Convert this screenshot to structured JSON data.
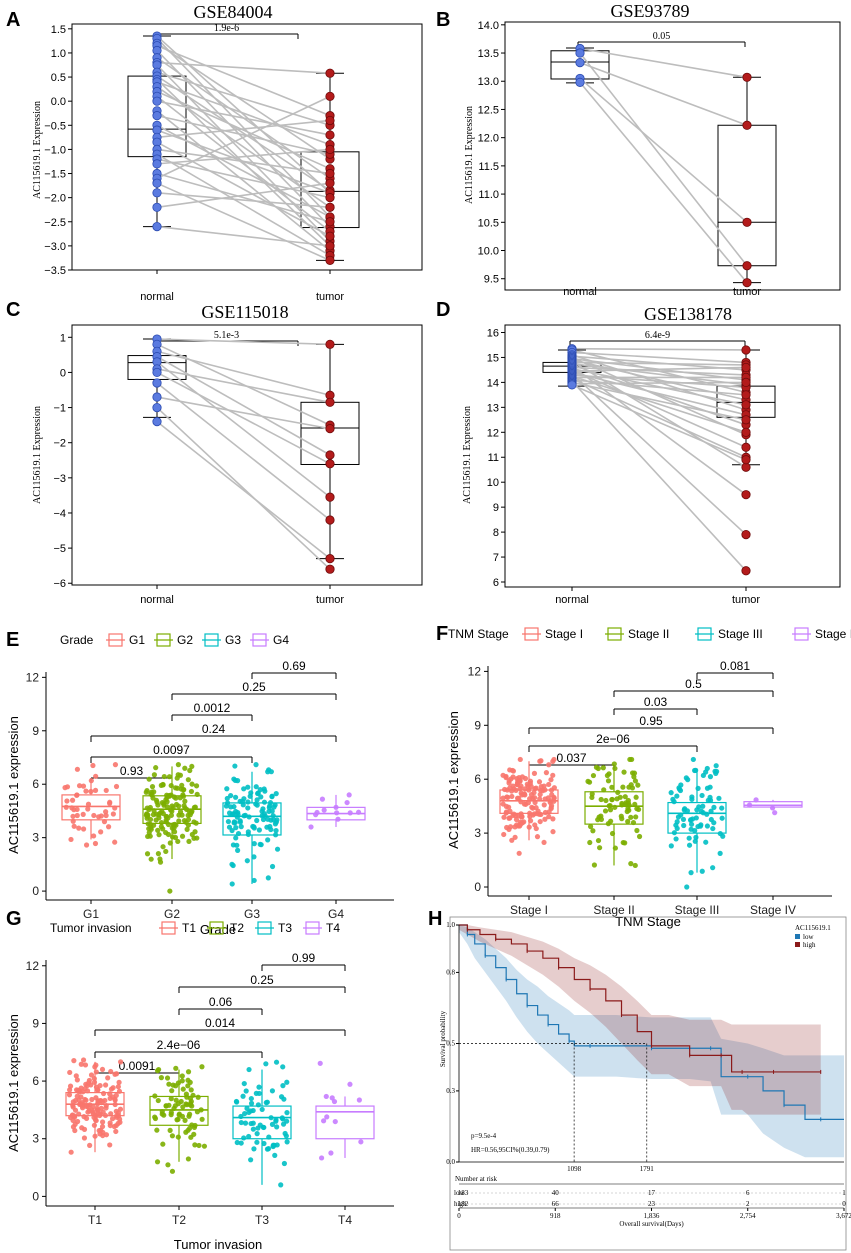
{
  "panel_labels": [
    "A",
    "B",
    "C",
    "D",
    "E",
    "F",
    "G",
    "H"
  ],
  "chart_data": [
    {
      "id": "A",
      "type": "paired-box",
      "title": "GSE84004",
      "ylabel": "AC115619.1 Expression",
      "categories": [
        "normal",
        "tumor"
      ],
      "ylim": [
        -3.5,
        1.6
      ],
      "yticks": [
        1.5,
        1.0,
        0.5,
        0.0,
        -0.5,
        -1.0,
        -1.5,
        -2.0,
        -2.5,
        -3.0,
        -3.5
      ],
      "yticklabels": [
        "1.5",
        "1.0",
        "0.5",
        "0.0",
        "−0.5",
        "−1.0",
        "−1.5",
        "−2.0",
        "−2.5",
        "−3.0",
        "−3.5"
      ],
      "pvalue": "1.9e-6",
      "box": [
        {
          "min": -2.6,
          "q1": -1.15,
          "median": -0.58,
          "q3": 0.52,
          "max": 1.35
        },
        {
          "min": -3.3,
          "q1": -2.62,
          "median": -1.87,
          "q3": -1.05,
          "max": 0.58
        }
      ],
      "pairs": [
        [
          1.35,
          -1.9
        ],
        [
          1.3,
          -2.4
        ],
        [
          1.2,
          -1.2
        ],
        [
          1.15,
          -0.3
        ],
        [
          1.05,
          -2.6
        ],
        [
          0.9,
          -1.6
        ],
        [
          0.8,
          0.58
        ],
        [
          0.75,
          -2.9
        ],
        [
          0.6,
          -0.5
        ],
        [
          0.52,
          -1.85
        ],
        [
          0.45,
          -3.0
        ],
        [
          0.4,
          -0.9
        ],
        [
          0.3,
          -2.2
        ],
        [
          0.2,
          -1.4
        ],
        [
          0.1,
          -2.7
        ],
        [
          0.0,
          -0.7
        ],
        [
          -0.2,
          -3.1
        ],
        [
          -0.3,
          -1.1
        ],
        [
          -0.5,
          -2.4
        ],
        [
          -0.6,
          -1.9
        ],
        [
          -0.75,
          -0.4
        ],
        [
          -0.85,
          -2.8
        ],
        [
          -1.0,
          -1.5
        ],
        [
          -1.1,
          -3.2
        ],
        [
          -1.2,
          -2.0
        ],
        [
          -1.3,
          -1.0
        ],
        [
          -1.5,
          -2.5
        ],
        [
          -1.6,
          0.1
        ],
        [
          -1.7,
          -3.3
        ],
        [
          -1.9,
          -2.2
        ],
        [
          -2.2,
          -1.7
        ],
        [
          -2.6,
          -3.0
        ]
      ]
    },
    {
      "id": "B",
      "type": "paired-box",
      "title": "GSE93789",
      "ylabel": "AC115619.1 Expression",
      "categories": [
        "normal",
        "tumor"
      ],
      "ylim": [
        9.3,
        14.05
      ],
      "yticks": [
        14.0,
        13.5,
        13.0,
        12.5,
        12.0,
        11.5,
        11.0,
        10.5,
        10.0,
        9.5
      ],
      "yticklabels": [
        "14.0",
        "13.5",
        "13.0",
        "12.5",
        "12.0",
        "11.5",
        "11.0",
        "10.5",
        "10.0",
        "9.5"
      ],
      "pvalue": "0.05",
      "box": [
        {
          "min": 12.97,
          "q1": 13.04,
          "median": 13.34,
          "q3": 13.54,
          "max": 13.59
        },
        {
          "min": 9.43,
          "q1": 9.73,
          "median": 10.5,
          "q3": 12.22,
          "max": 13.07
        }
      ],
      "pairs": [
        [
          13.58,
          13.07
        ],
        [
          13.5,
          9.73
        ],
        [
          13.33,
          12.22
        ],
        [
          13.05,
          10.5
        ],
        [
          12.98,
          9.43
        ]
      ]
    },
    {
      "id": "C",
      "type": "paired-box",
      "title": "GSE115018",
      "ylabel": "AC115619.1 Expression",
      "categories": [
        "normal",
        "tumor"
      ],
      "ylim": [
        -6.05,
        1.35
      ],
      "yticks": [
        1,
        0,
        -1,
        -2,
        -3,
        -4,
        -5,
        -6
      ],
      "yticklabels": [
        "1",
        "0",
        "−1",
        "−2",
        "−3",
        "−4",
        "−5",
        "−6"
      ],
      "pvalue": "5.1e-3",
      "box": [
        {
          "min": -1.28,
          "q1": -0.2,
          "median": 0.28,
          "q3": 0.48,
          "max": 0.95
        },
        {
          "min": -5.3,
          "q1": -2.62,
          "median": -1.58,
          "q3": -0.85,
          "max": 0.8
        }
      ],
      "pairs": [
        [
          0.95,
          0.8
        ],
        [
          0.8,
          -1.5
        ],
        [
          0.6,
          -0.65
        ],
        [
          0.45,
          -2.35
        ],
        [
          0.3,
          -3.55
        ],
        [
          0.1,
          -0.85
        ],
        [
          0.0,
          -2.6
        ],
        [
          -0.3,
          -4.2
        ],
        [
          -0.7,
          -1.6
        ],
        [
          -1.0,
          -5.6
        ],
        [
          -1.4,
          -5.3
        ]
      ]
    },
    {
      "id": "D",
      "type": "paired-box",
      "title": "GSE138178",
      "ylabel": "AC115619.1 Expression",
      "categories": [
        "normal",
        "tumor"
      ],
      "ylim": [
        5.8,
        16.3
      ],
      "yticks": [
        16,
        15,
        14,
        13,
        12,
        11,
        10,
        9,
        8,
        7,
        6
      ],
      "yticklabels": [
        "16",
        "15",
        "14",
        "13",
        "12",
        "11",
        "10",
        "9",
        "8",
        "7",
        "6"
      ],
      "pvalue": "6.4e-9",
      "box": [
        {
          "min": 13.85,
          "q1": 14.4,
          "median": 14.65,
          "q3": 14.8,
          "max": 15.3
        },
        {
          "min": 10.7,
          "q1": 12.6,
          "median": 13.2,
          "q3": 13.85,
          "max": 15.3
        }
      ],
      "pairs": [
        [
          15.35,
          15.3
        ],
        [
          15.3,
          13.6
        ],
        [
          15.2,
          14.8
        ],
        [
          15.1,
          12.9
        ],
        [
          15.05,
          14.5
        ],
        [
          15.0,
          11.9
        ],
        [
          14.95,
          14.1
        ],
        [
          14.9,
          13.3
        ],
        [
          14.85,
          10.6
        ],
        [
          14.8,
          14.7
        ],
        [
          14.75,
          13.9
        ],
        [
          14.7,
          12.3
        ],
        [
          14.65,
          9.5
        ],
        [
          14.6,
          14.3
        ],
        [
          14.55,
          13.1
        ],
        [
          14.5,
          11.4
        ],
        [
          14.45,
          14.6
        ],
        [
          14.4,
          12.7
        ],
        [
          14.35,
          7.9
        ],
        [
          14.3,
          13.8
        ],
        [
          14.25,
          12.0
        ],
        [
          14.2,
          14.2
        ],
        [
          14.15,
          11.0
        ],
        [
          14.1,
          13.5
        ],
        [
          14.05,
          6.45
        ],
        [
          14.0,
          12.5
        ],
        [
          13.95,
          14.0
        ],
        [
          13.9,
          10.9
        ]
      ]
    },
    {
      "id": "E",
      "type": "box-jitter",
      "legend_title": "Grade",
      "categories": [
        "G1",
        "G2",
        "G3",
        "G4"
      ],
      "colors": [
        "#f8766d",
        "#7cae00",
        "#00bfc4",
        "#c77cff"
      ],
      "xlabel": "Grade",
      "ylabel": "AC115619.1 expression",
      "ylim": [
        -0.5,
        12.3
      ],
      "yticks": [
        0,
        3,
        6,
        9,
        12
      ],
      "box": [
        {
          "min": 2.9,
          "q1": 4.0,
          "median": 4.75,
          "q3": 5.4,
          "max": 6.2
        },
        {
          "min": 1.8,
          "q1": 3.8,
          "median": 4.6,
          "q3": 5.35,
          "max": 7.0
        },
        {
          "min": 0.4,
          "q1": 3.15,
          "median": 4.2,
          "q3": 4.95,
          "max": 6.7
        },
        {
          "min": 3.6,
          "q1": 4.0,
          "median": 4.35,
          "q3": 4.7,
          "max": 5.4
        }
      ],
      "n": [
        48,
        150,
        110,
        12
      ],
      "comparisons": [
        {
          "pair": [
            "G3",
            "G4"
          ],
          "p": "0.69"
        },
        {
          "pair": [
            "G2",
            "G4"
          ],
          "p": "0.25"
        },
        {
          "pair": [
            "G2",
            "G3"
          ],
          "p": "0.0012"
        },
        {
          "pair": [
            "G1",
            "G4"
          ],
          "p": "0.24"
        },
        {
          "pair": [
            "G1",
            "G3"
          ],
          "p": "0.0097"
        },
        {
          "pair": [
            "G1",
            "G2"
          ],
          "p": "0.93"
        }
      ]
    },
    {
      "id": "F",
      "type": "box-jitter",
      "legend_title": "TNM Stage",
      "categories": [
        "Stage I",
        "Stage II",
        "Stage III",
        "Stage IV"
      ],
      "colors": [
        "#f8766d",
        "#7cae00",
        "#00bfc4",
        "#c77cff"
      ],
      "xlabel": "TNM Stage",
      "ylabel": "AC115619.1 expression",
      "ylim": [
        -0.5,
        12.3
      ],
      "yticks": [
        0,
        3,
        6,
        9,
        12
      ],
      "box": [
        {
          "min": 2.6,
          "q1": 4.1,
          "median": 4.8,
          "q3": 5.4,
          "max": 7.0
        },
        {
          "min": 1.2,
          "q1": 3.5,
          "median": 4.5,
          "q3": 5.3,
          "max": 6.6
        },
        {
          "min": 0.8,
          "q1": 3.0,
          "median": 4.1,
          "q3": 4.7,
          "max": 6.6
        },
        {
          "min": 4.4,
          "q1": 4.45,
          "median": 4.55,
          "q3": 4.75,
          "max": 4.85
        }
      ],
      "n": [
        150,
        80,
        80,
        4
      ],
      "comparisons": [
        {
          "pair": [
            "Stage III",
            "Stage IV"
          ],
          "p": "0.081"
        },
        {
          "pair": [
            "Stage II",
            "Stage IV"
          ],
          "p": "0.5"
        },
        {
          "pair": [
            "Stage II",
            "Stage III"
          ],
          "p": "0.03"
        },
        {
          "pair": [
            "Stage I",
            "Stage IV"
          ],
          "p": "0.95"
        },
        {
          "pair": [
            "Stage I",
            "Stage III"
          ],
          "p": "2e−06"
        },
        {
          "pair": [
            "Stage I",
            "Stage II"
          ],
          "p": "0.037"
        }
      ]
    },
    {
      "id": "G",
      "type": "box-jitter",
      "legend_title": "Tumor invasion",
      "categories": [
        "T1",
        "T2",
        "T3",
        "T4"
      ],
      "colors": [
        "#f8766d",
        "#7cae00",
        "#00bfc4",
        "#c77cff"
      ],
      "xlabel": "Tumor invasion",
      "ylabel": "AC115619.1 expression",
      "ylim": [
        -0.5,
        12.3
      ],
      "yticks": [
        0,
        3,
        6,
        9,
        12
      ],
      "box": [
        {
          "min": 2.3,
          "q1": 4.2,
          "median": 4.8,
          "q3": 5.4,
          "max": 7.0
        },
        {
          "min": 1.8,
          "q1": 3.7,
          "median": 4.5,
          "q3": 5.2,
          "max": 6.6
        },
        {
          "min": 0.6,
          "q1": 3.0,
          "median": 4.1,
          "q3": 4.7,
          "max": 6.6
        },
        {
          "min": 2.0,
          "q1": 3.0,
          "median": 4.4,
          "q3": 4.7,
          "max": 5.2
        }
      ],
      "n": [
        150,
        80,
        70,
        12
      ],
      "comparisons": [
        {
          "pair": [
            "T3",
            "T4"
          ],
          "p": "0.99"
        },
        {
          "pair": [
            "T2",
            "T4"
          ],
          "p": "0.25"
        },
        {
          "pair": [
            "T2",
            "T3"
          ],
          "p": "0.06"
        },
        {
          "pair": [
            "T1",
            "T4"
          ],
          "p": "0.014"
        },
        {
          "pair": [
            "T1",
            "T3"
          ],
          "p": "2.4e−06"
        },
        {
          "pair": [
            "T1",
            "T2"
          ],
          "p": "0.0091"
        }
      ]
    },
    {
      "id": "H",
      "type": "kaplan-meier",
      "legend_title": "AC115619.1",
      "legend": [
        "low",
        "high"
      ],
      "colors": [
        "#1f77b4",
        "#8b1a1a"
      ],
      "ylabel": "Survival probability",
      "xlabel": "Overall survival(Days)",
      "xlim": [
        0,
        3672
      ],
      "ylim": [
        0,
        1.0
      ],
      "xticks": [
        0,
        918,
        1836,
        2754,
        3672
      ],
      "xticklabels": [
        "0",
        "918",
        "1,836",
        "2,754",
        "3,672"
      ],
      "yticks": [
        0.0,
        0.3,
        0.5,
        0.8,
        1.0
      ],
      "yticklabels": [
        "0.0",
        "0.3",
        "0.5",
        "0.8",
        "1.0"
      ],
      "stats": [
        "p=9.5e-4",
        "HR=0.56,95CI%(0.39,0.79)"
      ],
      "median_labels": [
        "1098",
        "1791"
      ],
      "medians": [
        1098,
        1791
      ],
      "risk_title": "Number at risk",
      "risk_rows": [
        {
          "group": "low",
          "counts": [
            "183",
            "40",
            "17",
            "6",
            "1"
          ]
        },
        {
          "group": "high",
          "counts": [
            "182",
            "66",
            "23",
            "2",
            "0"
          ]
        }
      ],
      "series": [
        {
          "name": "low",
          "x": [
            0,
            80,
            150,
            250,
            350,
            450,
            550,
            650,
            750,
            850,
            950,
            1050,
            1100,
            1250,
            1500,
            1836,
            2200,
            2400,
            2500,
            2754,
            2900,
            3100,
            3300,
            3450,
            3672
          ],
          "y": [
            1.0,
            0.96,
            0.92,
            0.87,
            0.82,
            0.77,
            0.71,
            0.66,
            0.62,
            0.58,
            0.54,
            0.51,
            0.49,
            0.49,
            0.49,
            0.48,
            0.48,
            0.48,
            0.36,
            0.36,
            0.3,
            0.24,
            0.18,
            0.18,
            0.18
          ],
          "lower": [
            0.97,
            0.92,
            0.86,
            0.8,
            0.74,
            0.68,
            0.61,
            0.55,
            0.5,
            0.46,
            0.42,
            0.38,
            0.36,
            0.36,
            0.36,
            0.35,
            0.35,
            0.34,
            0.2,
            0.2,
            0.12,
            0.06,
            0.02,
            0.02,
            0.02
          ],
          "upper": [
            1.0,
            0.99,
            0.97,
            0.94,
            0.9,
            0.86,
            0.81,
            0.77,
            0.74,
            0.7,
            0.67,
            0.64,
            0.62,
            0.62,
            0.62,
            0.61,
            0.61,
            0.61,
            0.52,
            0.5,
            0.48,
            0.45,
            0.45,
            0.45,
            0.45
          ]
        },
        {
          "name": "high",
          "x": [
            0,
            80,
            200,
            350,
            500,
            650,
            800,
            950,
            1100,
            1250,
            1400,
            1550,
            1700,
            1836,
            2000,
            2200,
            2400,
            2500,
            2600,
            2700,
            2754,
            3000,
            3300,
            3450
          ],
          "y": [
            1.0,
            0.98,
            0.96,
            0.94,
            0.92,
            0.89,
            0.86,
            0.82,
            0.77,
            0.73,
            0.68,
            0.62,
            0.55,
            0.49,
            0.49,
            0.45,
            0.45,
            0.45,
            0.38,
            0.38,
            0.38,
            0.38,
            0.38,
            0.38
          ],
          "lower": [
            0.98,
            0.96,
            0.93,
            0.9,
            0.87,
            0.83,
            0.79,
            0.74,
            0.68,
            0.63,
            0.57,
            0.5,
            0.43,
            0.37,
            0.37,
            0.32,
            0.32,
            0.32,
            0.22,
            0.22,
            0.2,
            0.2,
            0.2,
            0.2
          ],
          "upper": [
            1.0,
            1.0,
            0.99,
            0.98,
            0.97,
            0.95,
            0.93,
            0.9,
            0.86,
            0.83,
            0.79,
            0.74,
            0.68,
            0.62,
            0.62,
            0.6,
            0.6,
            0.6,
            0.58,
            0.58,
            0.58,
            0.58,
            0.58,
            0.58
          ]
        }
      ]
    }
  ]
}
